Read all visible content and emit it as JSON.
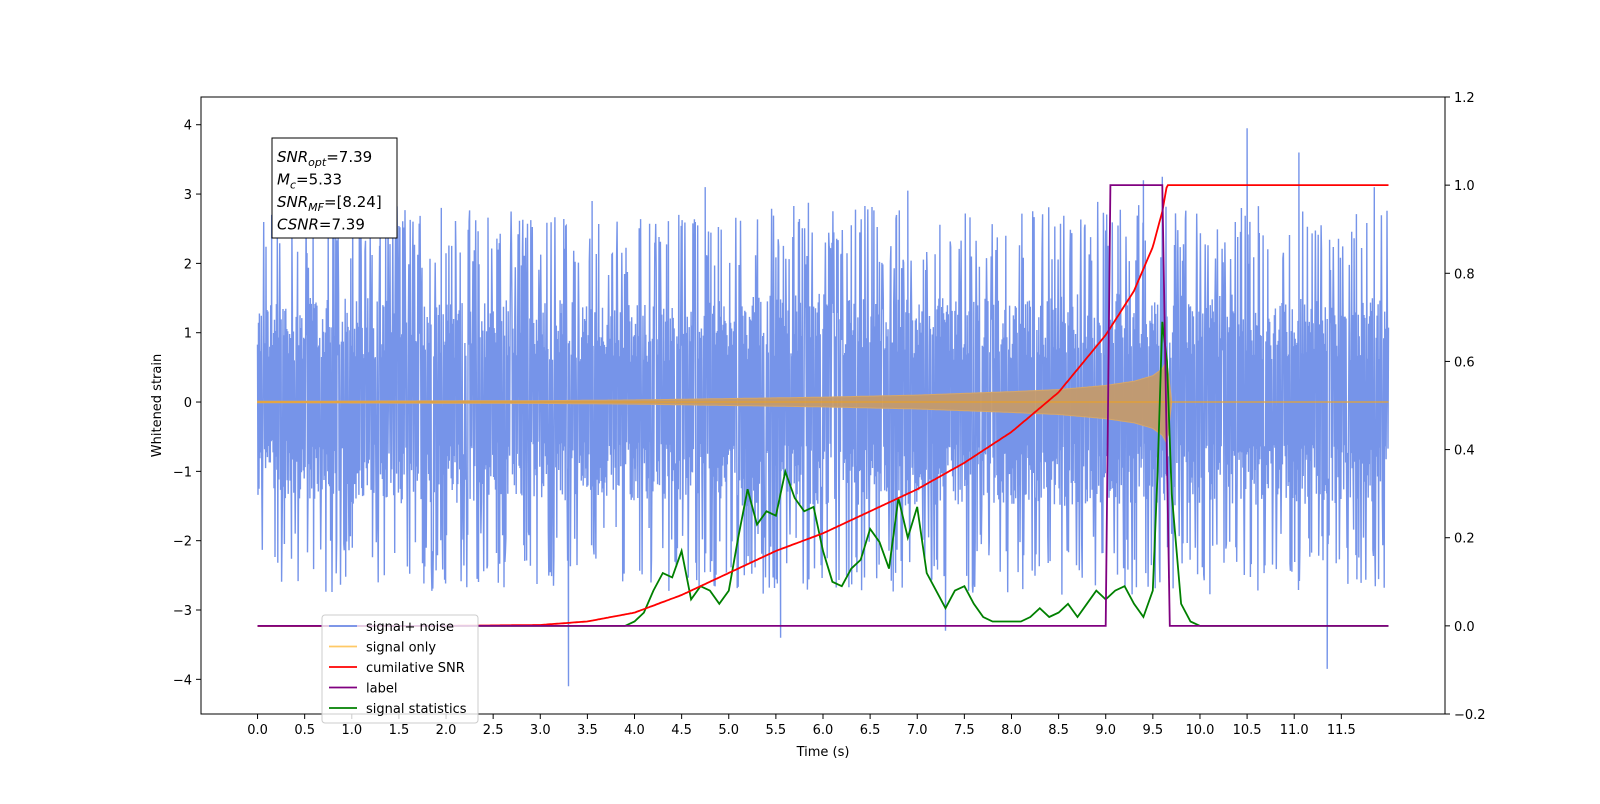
{
  "chart_data": {
    "type": "line",
    "xlabel": "Time (s)",
    "ylabel": "Whitened strain",
    "xlim": [
      -0.6,
      12.6
    ],
    "ylim": [
      -4.5,
      4.4
    ],
    "y2lim": [
      -0.2,
      1.2
    ],
    "x_ticks": [
      "0.0",
      "0.5",
      "1.0",
      "1.5",
      "2.0",
      "2.5",
      "3.0",
      "3.5",
      "4.0",
      "4.5",
      "5.0",
      "5.5",
      "6.0",
      "6.5",
      "7.0",
      "7.5",
      "8.0",
      "8.5",
      "9.0",
      "9.5",
      "10.0",
      "10.5",
      "11.0",
      "11.5"
    ],
    "y_ticks": [
      "−4",
      "−3",
      "−2",
      "−1",
      "0",
      "1",
      "2",
      "3",
      "4"
    ],
    "y2_ticks": [
      "−0.2",
      "0.0",
      "0.2",
      "0.4",
      "0.6",
      "0.8",
      "1.0",
      "1.2"
    ],
    "grid": false,
    "legend_position": "bottom-left",
    "annotation": {
      "lines": [
        {
          "base": "SNR",
          "sub": "opt",
          "value": "=7.39"
        },
        {
          "base": "M",
          "sub": "c",
          "value": "=5.33"
        },
        {
          "base": "SNR",
          "sub": "MF",
          "value": "=[8.24]"
        },
        {
          "base": "CSNR",
          "sub": "",
          "value": "=7.39"
        }
      ]
    },
    "series": [
      {
        "name": "signal+ noise",
        "axis": "left",
        "color": "#6f8ee8",
        "envelope": {
          "x": [
            0.0,
            1.0,
            2.0,
            3.0,
            4.0,
            5.0,
            6.0,
            7.0,
            8.0,
            9.0,
            10.0,
            11.0,
            12.0
          ],
          "upper_typical": [
            1.8,
            2.0,
            1.9,
            1.9,
            1.8,
            1.9,
            2.0,
            1.9,
            1.9,
            2.0,
            2.0,
            1.9,
            1.9
          ],
          "lower_typical": [
            -1.7,
            -1.9,
            -1.9,
            -1.8,
            -1.8,
            -1.9,
            -1.9,
            -1.9,
            -1.9,
            -1.9,
            -1.9,
            -1.9,
            -1.8
          ]
        },
        "peaks": [
          {
            "x": 0.15,
            "y": 2.7
          },
          {
            "x": 1.3,
            "y": 3.45
          },
          {
            "x": 1.95,
            "y": 2.8
          },
          {
            "x": 3.3,
            "y": -4.1
          },
          {
            "x": 3.55,
            "y": 2.9
          },
          {
            "x": 4.75,
            "y": 3.1
          },
          {
            "x": 5.55,
            "y": -3.4
          },
          {
            "x": 6.9,
            "y": 3.05
          },
          {
            "x": 7.3,
            "y": -3.3
          },
          {
            "x": 9.4,
            "y": 3.2
          },
          {
            "x": 9.6,
            "y": 3.25
          },
          {
            "x": 10.5,
            "y": 3.95
          },
          {
            "x": 11.05,
            "y": 3.6
          },
          {
            "x": 11.35,
            "y": -3.85
          },
          {
            "x": 11.85,
            "y": 3.1
          }
        ]
      },
      {
        "name": "signal only",
        "axis": "left",
        "color": "#ffa500",
        "amplitude": {
          "x": [
            0.0,
            3.0,
            4.0,
            5.0,
            6.0,
            7.0,
            8.0,
            8.5,
            9.0,
            9.3,
            9.5,
            9.6,
            9.65,
            9.7,
            12.0
          ],
          "y": [
            0.01,
            0.02,
            0.03,
            0.05,
            0.07,
            0.1,
            0.15,
            0.18,
            0.24,
            0.3,
            0.38,
            0.48,
            0.6,
            0.0,
            0.0
          ]
        }
      },
      {
        "name": "cumilative SNR",
        "axis": "right",
        "color": "#ff0000",
        "x": [
          0.0,
          2.0,
          3.0,
          3.5,
          4.0,
          4.5,
          5.0,
          5.5,
          6.0,
          6.5,
          7.0,
          7.5,
          8.0,
          8.5,
          9.0,
          9.3,
          9.5,
          9.6,
          9.65,
          9.7,
          12.0
        ],
        "values": [
          0.0,
          0.0,
          0.002,
          0.01,
          0.03,
          0.07,
          0.12,
          0.17,
          0.21,
          0.26,
          0.31,
          0.37,
          0.44,
          0.53,
          0.66,
          0.76,
          0.86,
          0.94,
          1.0,
          1.0,
          1.0
        ]
      },
      {
        "name": "label",
        "axis": "right",
        "color": "#800080",
        "x": [
          0.0,
          9.0,
          9.05,
          9.6,
          9.68,
          12.0
        ],
        "values": [
          0.0,
          0.0,
          1.0,
          1.0,
          0.0,
          0.0
        ]
      },
      {
        "name": "signal statistics",
        "axis": "right",
        "color": "#008000",
        "x": [
          0.0,
          3.9,
          4.0,
          4.1,
          4.2,
          4.3,
          4.4,
          4.5,
          4.6,
          4.7,
          4.8,
          4.9,
          5.0,
          5.1,
          5.2,
          5.3,
          5.4,
          5.5,
          5.6,
          5.7,
          5.8,
          5.9,
          6.0,
          6.1,
          6.2,
          6.3,
          6.4,
          6.5,
          6.6,
          6.7,
          6.8,
          6.9,
          7.0,
          7.1,
          7.2,
          7.3,
          7.4,
          7.5,
          7.6,
          7.7,
          7.8,
          7.9,
          8.0,
          8.1,
          8.2,
          8.3,
          8.4,
          8.5,
          8.6,
          8.7,
          8.8,
          8.9,
          9.0,
          9.1,
          9.2,
          9.3,
          9.4,
          9.5,
          9.55,
          9.6,
          9.65,
          9.7,
          9.8,
          9.9,
          10.0,
          12.0
        ],
        "values": [
          0.0,
          0.0,
          0.01,
          0.03,
          0.08,
          0.12,
          0.11,
          0.17,
          0.06,
          0.09,
          0.08,
          0.05,
          0.08,
          0.2,
          0.31,
          0.23,
          0.26,
          0.25,
          0.35,
          0.29,
          0.26,
          0.27,
          0.17,
          0.1,
          0.09,
          0.13,
          0.15,
          0.22,
          0.19,
          0.13,
          0.29,
          0.2,
          0.27,
          0.12,
          0.08,
          0.04,
          0.08,
          0.09,
          0.05,
          0.02,
          0.01,
          0.01,
          0.01,
          0.01,
          0.02,
          0.04,
          0.02,
          0.03,
          0.05,
          0.02,
          0.05,
          0.08,
          0.06,
          0.08,
          0.09,
          0.05,
          0.02,
          0.08,
          0.35,
          0.69,
          0.6,
          0.3,
          0.05,
          0.01,
          0.0,
          0.0
        ]
      }
    ]
  }
}
